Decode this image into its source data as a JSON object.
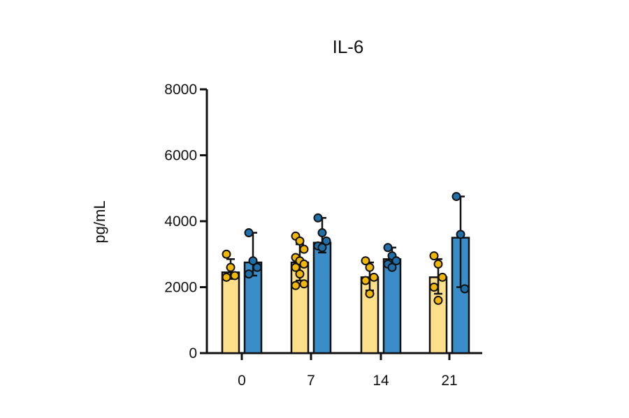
{
  "chart_data": {
    "type": "bar",
    "title": "IL-6",
    "xlabel": "",
    "ylabel": "pg/mL",
    "ylim": [
      0,
      8000
    ],
    "yticks": [
      0,
      2000,
      4000,
      6000,
      8000
    ],
    "categories": [
      "0",
      "7",
      "14",
      "21"
    ],
    "grid": false,
    "legend": "none",
    "series": [
      {
        "color": "#FFE08A",
        "point_color": "#F2B705",
        "values": [
          2450,
          2750,
          2300,
          2300
        ],
        "error": [
          [
            2250,
            2850
          ],
          [
            2200,
            3300
          ],
          [
            1900,
            2750
          ],
          [
            1800,
            2850
          ]
        ],
        "points": [
          [
            3000,
            2600,
            2350,
            2300
          ],
          [
            3550,
            3400,
            3150,
            2900,
            2800,
            2700,
            2600,
            2400,
            2100,
            2050
          ],
          [
            2800,
            2600,
            2300,
            2200,
            1800
          ],
          [
            2950,
            2700,
            2300,
            2000,
            1600
          ]
        ]
      },
      {
        "color": "#3A8DC8",
        "point_color": "#1F6FAA",
        "values": [
          2750,
          3350,
          2850,
          3500
        ],
        "error": [
          [
            2350,
            3650
          ],
          [
            3050,
            4100
          ],
          [
            2550,
            3200
          ],
          [
            2000,
            4750
          ]
        ],
        "points": [
          [
            3650,
            2800,
            2600,
            2400
          ],
          [
            4100,
            3650,
            3400,
            3250,
            3200
          ],
          [
            3200,
            2950,
            2800,
            2700,
            2600
          ],
          [
            4750,
            3600,
            1950
          ]
        ]
      }
    ]
  }
}
